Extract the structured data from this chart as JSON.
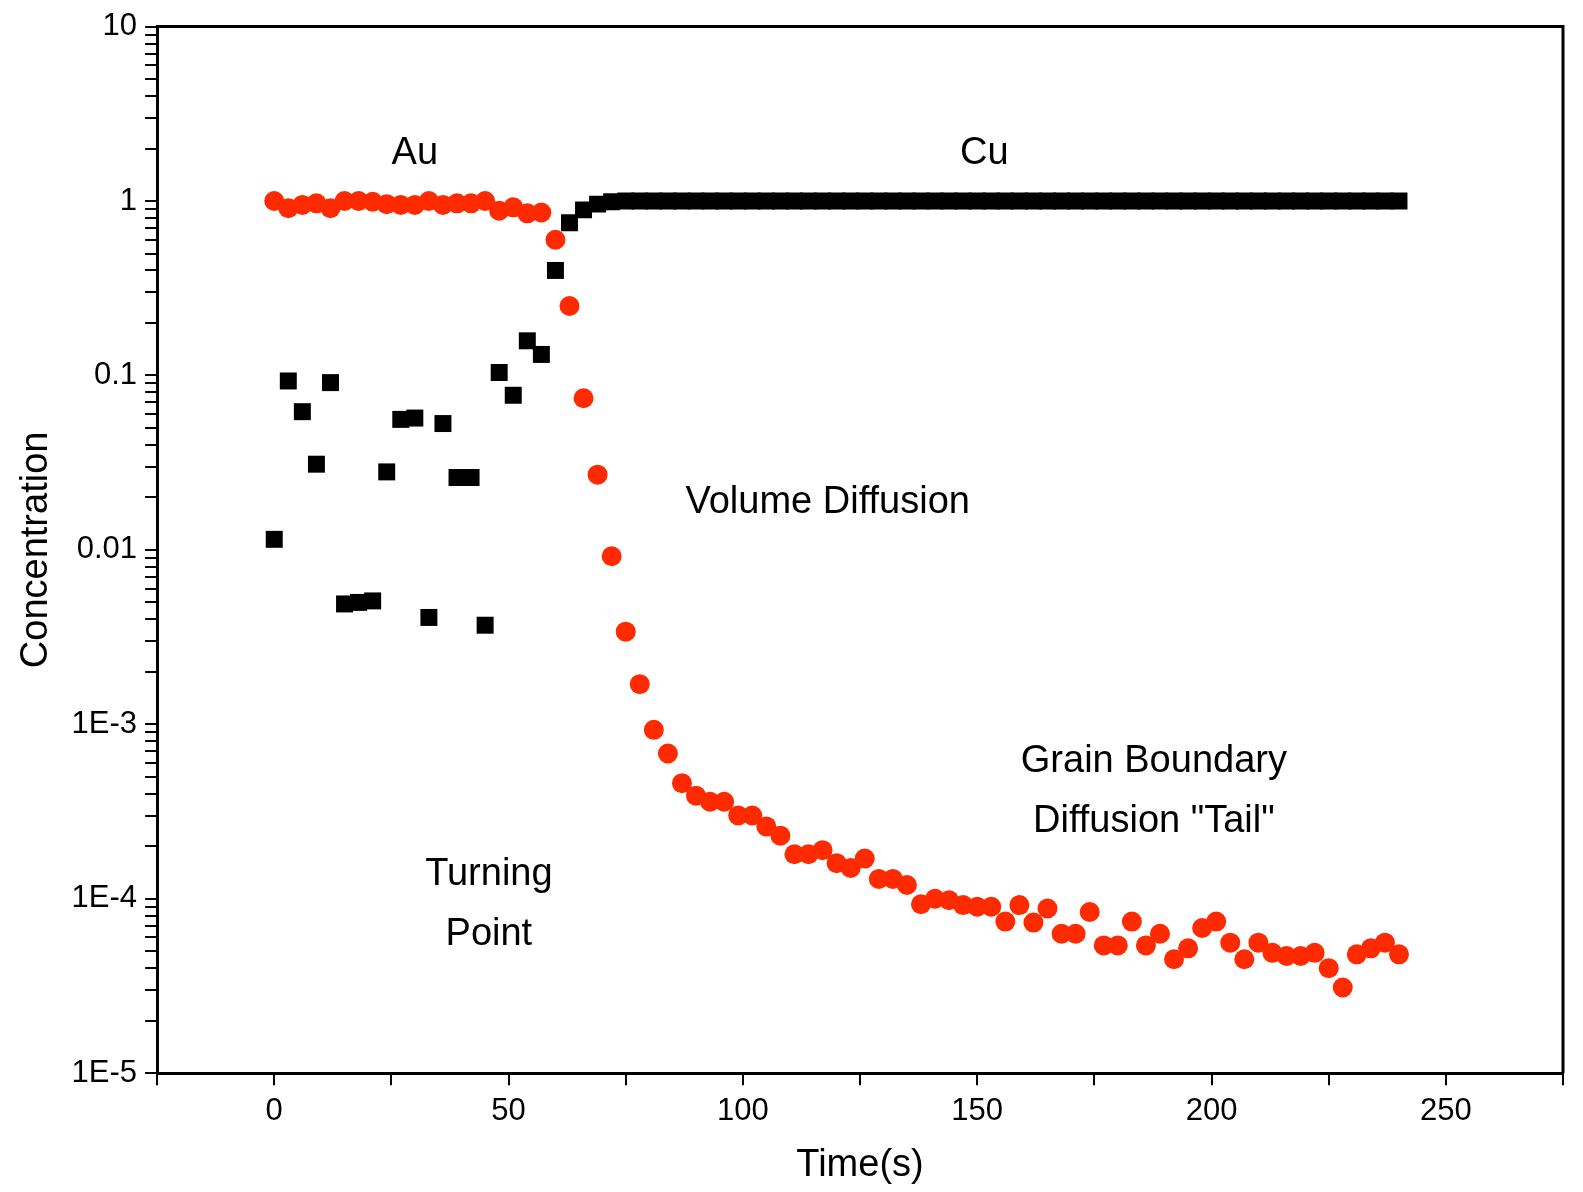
{
  "chart_data": {
    "type": "scatter",
    "xlabel": "Time(s)",
    "ylabel": "Concentration",
    "log": "y",
    "grid": false,
    "legend": false,
    "xlim": [
      -25,
      275
    ],
    "xticks": [
      {
        "value": -25,
        "label": null
      },
      0,
      {
        "value": 25,
        "label": null
      },
      50,
      {
        "value": 75,
        "label": null
      },
      100,
      {
        "value": 125,
        "label": null
      },
      150,
      {
        "value": 175,
        "label": null
      },
      200,
      {
        "value": 225,
        "label": null
      },
      250,
      {
        "value": 275,
        "label": null
      }
    ],
    "ylim": [
      1e-05,
      10
    ],
    "yticks": [
      {
        "value": 1e-05,
        "label": "1E-5"
      },
      {
        "value": 2e-05,
        "label": null
      },
      {
        "value": 3e-05,
        "label": null
      },
      {
        "value": 4e-05,
        "label": null
      },
      {
        "value": 5e-05,
        "label": null
      },
      {
        "value": 6e-05,
        "label": null
      },
      {
        "value": 7e-05,
        "label": null
      },
      {
        "value": 8e-05,
        "label": null
      },
      {
        "value": 9e-05,
        "label": null
      },
      {
        "value": 0.0001,
        "label": "1E-4"
      },
      {
        "value": 0.0002,
        "label": null
      },
      {
        "value": 0.0003,
        "label": null
      },
      {
        "value": 0.0004,
        "label": null
      },
      {
        "value": 0.0005,
        "label": null
      },
      {
        "value": 0.0006,
        "label": null
      },
      {
        "value": 0.0007,
        "label": null
      },
      {
        "value": 0.0008,
        "label": null
      },
      {
        "value": 0.0009,
        "label": null
      },
      {
        "value": 0.001,
        "label": "1E-3"
      },
      {
        "value": 0.002,
        "label": null
      },
      {
        "value": 0.003,
        "label": null
      },
      {
        "value": 0.004,
        "label": null
      },
      {
        "value": 0.005,
        "label": null
      },
      {
        "value": 0.006,
        "label": null
      },
      {
        "value": 0.007,
        "label": null
      },
      {
        "value": 0.008,
        "label": null
      },
      {
        "value": 0.009,
        "label": null
      },
      0.01,
      {
        "value": 0.02,
        "label": null
      },
      {
        "value": 0.03,
        "label": null
      },
      {
        "value": 0.04,
        "label": null
      },
      {
        "value": 0.05,
        "label": null
      },
      {
        "value": 0.06,
        "label": null
      },
      {
        "value": 0.07,
        "label": null
      },
      {
        "value": 0.08,
        "label": null
      },
      {
        "value": 0.09,
        "label": null
      },
      0.1,
      {
        "value": 0.2,
        "label": null
      },
      {
        "value": 0.3,
        "label": null
      },
      {
        "value": 0.4,
        "label": null
      },
      {
        "value": 0.5,
        "label": null
      },
      {
        "value": 0.6,
        "label": null
      },
      {
        "value": 0.7,
        "label": null
      },
      {
        "value": 0.8,
        "label": null
      },
      {
        "value": 0.9,
        "label": null
      },
      1,
      {
        "value": 2,
        "label": null
      },
      {
        "value": 3,
        "label": null
      },
      {
        "value": 4,
        "label": null
      },
      {
        "value": 5,
        "label": null
      },
      {
        "value": 6,
        "label": null
      },
      {
        "value": 7,
        "label": null
      },
      {
        "value": 8,
        "label": null
      },
      {
        "value": 9,
        "label": null
      },
      10
    ],
    "x": [
      0,
      3,
      6,
      9,
      12,
      15,
      18,
      21,
      24,
      27,
      30,
      33,
      36,
      39,
      42,
      45,
      48,
      51,
      54,
      57,
      60,
      63,
      66,
      69,
      72,
      75,
      78,
      81,
      84,
      87,
      90,
      93,
      96,
      99,
      102,
      105,
      108,
      111,
      114,
      117,
      120,
      123,
      126,
      129,
      132,
      135,
      138,
      141,
      144,
      147,
      150,
      153,
      156,
      159,
      162,
      165,
      168,
      171,
      174,
      177,
      180,
      183,
      186,
      189,
      192,
      195,
      198,
      201,
      204,
      207,
      210,
      213,
      216,
      219,
      222,
      225,
      228,
      231,
      234,
      237,
      240
    ],
    "series": [
      {
        "name": "Cu",
        "color": "#000000",
        "marker": "square",
        "values": [
          0.0115,
          0.093,
          0.062,
          0.031,
          0.091,
          0.0049,
          0.005,
          0.0051,
          0.028,
          0.056,
          0.057,
          0.0041,
          0.053,
          0.026,
          0.026,
          0.0037,
          0.104,
          0.077,
          0.158,
          0.132,
          0.4,
          0.75,
          0.89,
          0.96,
          0.99,
          1,
          1,
          1,
          1,
          1,
          1,
          1,
          1,
          1,
          1,
          1,
          1,
          1,
          1,
          1,
          1,
          1,
          1,
          1,
          1,
          1,
          1,
          1,
          1,
          1,
          1,
          1,
          1,
          1,
          1,
          1,
          1,
          1,
          1,
          1,
          1,
          1,
          1,
          1,
          1,
          1,
          1,
          1,
          1,
          1,
          1,
          1,
          1,
          1,
          1,
          1,
          1,
          1,
          1,
          1,
          1
        ]
      },
      {
        "name": "Au",
        "color": "#ff2a00",
        "marker": "circle",
        "values": [
          1,
          0.91,
          0.95,
          0.97,
          0.91,
          1,
          1,
          0.99,
          0.96,
          0.95,
          0.95,
          1,
          0.95,
          0.97,
          0.97,
          1,
          0.88,
          0.92,
          0.85,
          0.86,
          0.6,
          0.25,
          0.074,
          0.027,
          0.0092,
          0.0034,
          0.0017,
          0.00093,
          0.00068,
          0.00046,
          0.00039,
          0.00036,
          0.00036,
          0.0003,
          0.0003,
          0.00026,
          0.00023,
          0.00018,
          0.00018,
          0.00019,
          0.00016,
          0.00015,
          0.00017,
          0.00013,
          0.00013,
          0.00012,
          9.3e-05,
          0.0001,
          9.8e-05,
          9.2e-05,
          9e-05,
          9e-05,
          7.4e-05,
          9.2e-05,
          7.3e-05,
          8.8e-05,
          6.3e-05,
          6.3e-05,
          8.4e-05,
          5.4e-05,
          5.4e-05,
          7.4e-05,
          5.4e-05,
          6.3e-05,
          4.5e-05,
          5.2e-05,
          6.8e-05,
          7.4e-05,
          5.6e-05,
          4.5e-05,
          5.6e-05,
          4.9e-05,
          4.7e-05,
          4.7e-05,
          4.9e-05,
          4e-05,
          3.1e-05,
          4.8e-05,
          5.2e-05,
          5.6e-05,
          4.8e-05
        ]
      }
    ],
    "annotations": [
      "Volume Diffusion",
      "Grain Boundary\nDiffusion \"Tail\"",
      "Turning\nPoint"
    ]
  }
}
